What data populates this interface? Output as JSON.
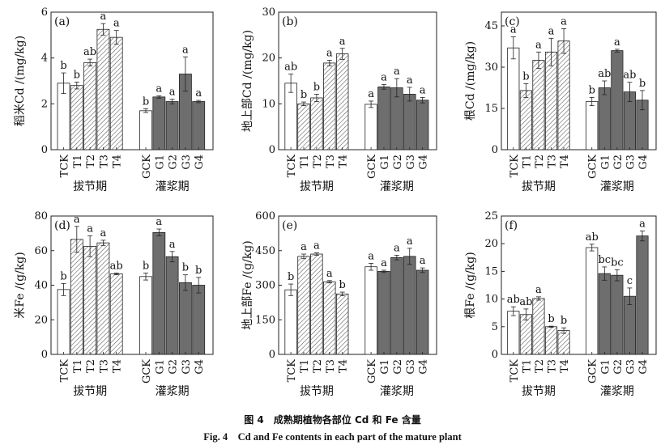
{
  "caption": {
    "cn": "图 4　成熟期植物各部位 Cd 和 Fe 含量",
    "en": "Fig. 4　Cd and Fe contents in each part of the mature plant"
  },
  "group_labels": [
    "拔节期",
    "灌浆期"
  ],
  "colors": {
    "ck": "#ffffff",
    "jointing": "#ffffff",
    "filling": "#6e6e6e",
    "line": "#222222",
    "hatch": "#555555"
  },
  "chart_data": [
    {
      "type": "bar",
      "panel": "(a)",
      "ylabel": "稻米Cd /(mg/kg)",
      "ylim": [
        0,
        6
      ],
      "yticks": [
        0,
        2,
        4,
        6
      ],
      "categories": [
        "TCK",
        "T1",
        "T2",
        "T3",
        "T4",
        "GCK",
        "G1",
        "G2",
        "G3",
        "G4"
      ],
      "values": [
        2.9,
        2.8,
        3.8,
        5.25,
        4.9,
        1.7,
        2.3,
        2.1,
        3.3,
        2.1
      ],
      "errors": [
        0.45,
        0.15,
        0.15,
        0.25,
        0.3,
        0.08,
        0.05,
        0.1,
        0.75,
        0.05
      ],
      "letters": [
        "b",
        "b",
        "ab",
        "a",
        "a",
        "b",
        "a",
        "a",
        "a",
        "a"
      ]
    },
    {
      "type": "bar",
      "panel": "(b)",
      "ylabel": "地上部Cd /(mg/kg)",
      "ylim": [
        0,
        30
      ],
      "yticks": [
        0,
        10,
        20,
        30
      ],
      "categories": [
        "TCK",
        "T1",
        "T2",
        "T3",
        "T4",
        "GCK",
        "G1",
        "G2",
        "G3",
        "G4"
      ],
      "values": [
        14.5,
        10.0,
        11.3,
        18.9,
        20.9,
        9.9,
        13.7,
        13.5,
        12.1,
        10.8
      ],
      "errors": [
        2.0,
        0.4,
        0.8,
        0.6,
        1.2,
        0.7,
        0.5,
        2.0,
        1.5,
        0.6
      ],
      "letters": [
        "ab",
        "b",
        "b",
        "a",
        "a",
        "a",
        "a",
        "a",
        "a",
        "a"
      ]
    },
    {
      "type": "bar",
      "panel": "(c)",
      "ylabel": "根Cd /(mg/kg)",
      "ylim": [
        0,
        50
      ],
      "yticks": [
        0,
        15,
        30,
        45
      ],
      "categories": [
        "TCK",
        "T1",
        "T2",
        "T3",
        "T4",
        "GCK",
        "G1",
        "G2",
        "G3",
        "G4"
      ],
      "values": [
        37.0,
        21.5,
        32.5,
        35.5,
        39.5,
        17.5,
        22.5,
        36.0,
        21.0,
        18.0
      ],
      "errors": [
        4.0,
        2.5,
        3.0,
        5.0,
        4.5,
        1.5,
        2.5,
        0.5,
        3.5,
        3.5
      ],
      "letters": [
        "a",
        "b",
        "a",
        "a",
        "a",
        "b",
        "ab",
        "a",
        "ab",
        "b"
      ]
    },
    {
      "type": "bar",
      "panel": "(d)",
      "ylabel": "米Fe /(g/kg)",
      "ylim": [
        0,
        80
      ],
      "yticks": [
        0,
        20,
        40,
        60,
        80
      ],
      "categories": [
        "TCK",
        "T1",
        "T2",
        "T3",
        "T4",
        "GCK",
        "G1",
        "G2",
        "G3",
        "G4"
      ],
      "values": [
        37.5,
        66.5,
        62.5,
        64.5,
        46.5,
        45.0,
        70.5,
        56.5,
        41.5,
        40.0
      ],
      "errors": [
        3.5,
        7.5,
        6.0,
        1.5,
        0.5,
        2.0,
        2.0,
        3.0,
        4.5,
        4.5
      ],
      "letters": [
        "b",
        "a",
        "a",
        "a",
        "ab",
        "b",
        "a",
        "a",
        "b",
        "b"
      ]
    },
    {
      "type": "bar",
      "panel": "(e)",
      "ylabel": "地上部Fe /(g/kg)",
      "ylim": [
        0,
        600
      ],
      "yticks": [
        0,
        150,
        300,
        450,
        600
      ],
      "categories": [
        "TCK",
        "T1",
        "T2",
        "T3",
        "T4",
        "GCK",
        "G1",
        "G2",
        "G3",
        "G4"
      ],
      "values": [
        280,
        425,
        435,
        315,
        262,
        380,
        360,
        420,
        425,
        365
      ],
      "errors": [
        25,
        10,
        5,
        5,
        8,
        15,
        5,
        10,
        35,
        10
      ],
      "letters": [
        "b",
        "a",
        "a",
        "a",
        "b",
        "a",
        "a",
        "a",
        "a",
        "a"
      ]
    },
    {
      "type": "bar",
      "panel": "(f)",
      "ylabel": "根Fe /(g/kg)",
      "ylim": [
        0,
        25
      ],
      "yticks": [
        0,
        5,
        10,
        15,
        20,
        25
      ],
      "categories": [
        "TCK",
        "T1",
        "T2",
        "T3",
        "T4",
        "GCK",
        "G1",
        "G2",
        "G3",
        "G4"
      ],
      "values": [
        7.8,
        7.2,
        10.1,
        5.0,
        4.3,
        19.3,
        14.6,
        14.3,
        10.5,
        21.4
      ],
      "errors": [
        0.8,
        1.0,
        0.3,
        0.1,
        0.5,
        0.6,
        1.2,
        1.0,
        1.5,
        0.9
      ],
      "letters": [
        "ab",
        "ab",
        "a",
        "b",
        "b",
        "ab",
        "bc",
        "bc",
        "c",
        "a"
      ]
    }
  ]
}
